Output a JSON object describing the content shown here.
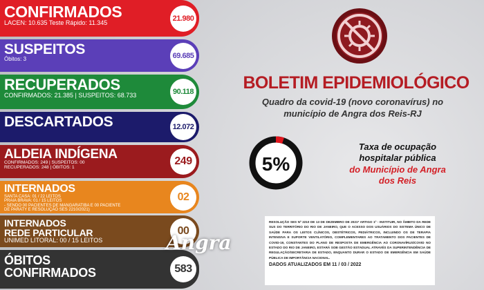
{
  "panels": [
    {
      "title": [
        "CONFIRMADOS"
      ],
      "details": [
        "LACEN: 10.635 Teste Rápido: 11.345"
      ],
      "total": "21.980"
    },
    {
      "title": [
        "SUSPEITOS"
      ],
      "details": [
        "Óbitos: 3"
      ],
      "total": "69.685"
    },
    {
      "title": [
        "RECUPERADOS"
      ],
      "details": [
        "CONFIRMADOS: 21.385 | SUSPEITOS: 68.733"
      ],
      "total": "90.118"
    },
    {
      "title": [
        "DESCARTADOS"
      ],
      "details": [],
      "total": "12.072"
    },
    {
      "title": [
        "ALDEIA INDÍGENA"
      ],
      "details": [
        "CONFIRMADOS: 249 | SUSPEITOS: 00",
        "RECUPERADOS: 248 | ÓBITOS: 1"
      ],
      "total": "249"
    },
    {
      "title": [
        "INTERNADOS"
      ],
      "details": [
        "SANTA CASA: 01 / 22 LEITOS",
        "PRAIA BRAVA: 01 / 15 LEITOS",
        "- SENDO 00 PACIENTES DE MANGARATIBA E 00 PACIENTE",
        "DE PARATY E RESOLUÇÃO SES 2210/2021)"
      ],
      "total": "02"
    },
    {
      "title": [
        "INTERNADOS",
        "REDE PARTICULAR"
      ],
      "details": [
        "UNIMED LITORAL: 00 / 15 LEITOS"
      ],
      "total": "00"
    },
    {
      "title": [
        "ÓBITOS",
        "CONFIRMADOS"
      ],
      "details": [],
      "total": "583"
    }
  ],
  "header": {
    "title": "BOLETIM EPIDEMIOLÓGICO",
    "subtitle": "Quadro da covid-19 (novo coronavírus) no município de Angra dos Reis-RJ"
  },
  "occupancy": {
    "rate": {
      "value": 5,
      "label": "5%"
    },
    "caption": "Taxa de ocupação hospitalar pública",
    "caption_highlight": "do Município de Angra dos Reis"
  },
  "logo": "Angra",
  "note": {
    "text": "RESOLUÇÃO SES Nº 2210 DE 13 DE DEZEMBRO DE 2021* ARTIGO 1º - INSTITUIR, NO ÂMBITO DA REDE SUS DO TERRITÓRIO DO RIO DE JANEIRO, QUE O ACESSO DOS USUÁRIOS DO SISTEMA ÚNICO DE SAÚDE PARA OS LEITOS CLÍNICOS, OBSTÉTRICOS, PEDIÁTRICOS, INCLUINDO OS DE TERAPIA INTENSIVA E SUPORTE VENTILATÓRIO, COMPLEMENTARES AO TRATAMENTO DOS PACIENTES DE COVID-19, CONSTANTES DO PLANO DE RESPOSTA DE EMERGÊNCIA AO CORONAVÍRUS/COVID NO ESTADO DO RIO DE JANEIRO, ESTARÁ SOB GESTÃO ESTADUAL ATRAVÉS DA SUPERINTENDÊNCIA DE REGULAÇÃO/SECRETARIA DE ESTADO, ENQUANTO DURAR O ESTADO DE EMERGÊNCIA EM SAÚDE PÚBLICA DE IMPORTÂNCIA NACIONAL.",
    "updated": "DADOS ATUALIZADOS EM 11 / 03 / 2022"
  }
}
